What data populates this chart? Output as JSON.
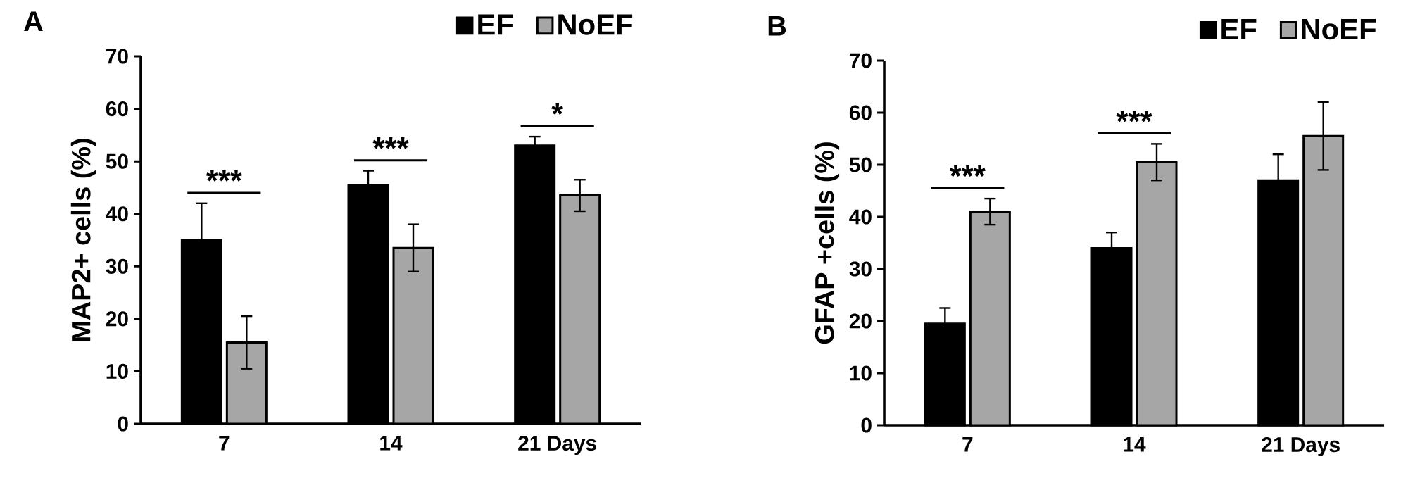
{
  "chart_data": [
    {
      "type": "bar",
      "title": "A",
      "ylabel": "MAP2+ cells (%)",
      "categories": [
        "7",
        "14",
        "21 Days"
      ],
      "series": [
        {
          "name": "EF",
          "color": "#000000",
          "values": [
            35,
            45.5,
            53
          ],
          "errors": [
            7,
            2.7,
            1.7
          ]
        },
        {
          "name": "NoEF",
          "color": "#a6a6a6",
          "values": [
            15.5,
            33.5,
            43.5
          ],
          "errors": [
            5,
            4.5,
            3
          ]
        }
      ],
      "ylim": [
        0,
        70
      ],
      "yticks": [
        0,
        10,
        20,
        30,
        40,
        50,
        60,
        70
      ],
      "grid": false,
      "legend": "top right",
      "annotations": [
        "***",
        "***",
        "*"
      ]
    },
    {
      "type": "bar",
      "title": "B",
      "ylabel": "GFAP +cells (%)",
      "categories": [
        "7",
        "14",
        "21 Days"
      ],
      "series": [
        {
          "name": "EF",
          "color": "#000000",
          "values": [
            19.5,
            34,
            47
          ],
          "errors": [
            3,
            3,
            5
          ]
        },
        {
          "name": "NoEF",
          "color": "#a6a6a6",
          "values": [
            41,
            50.5,
            55.5
          ],
          "errors": [
            2.5,
            3.5,
            6.5
          ]
        }
      ],
      "ylim": [
        0,
        70
      ],
      "yticks": [
        0,
        10,
        20,
        30,
        40,
        50,
        60,
        70
      ],
      "grid": false,
      "legend": "top right",
      "annotations": [
        "***",
        "***"
      ]
    }
  ]
}
